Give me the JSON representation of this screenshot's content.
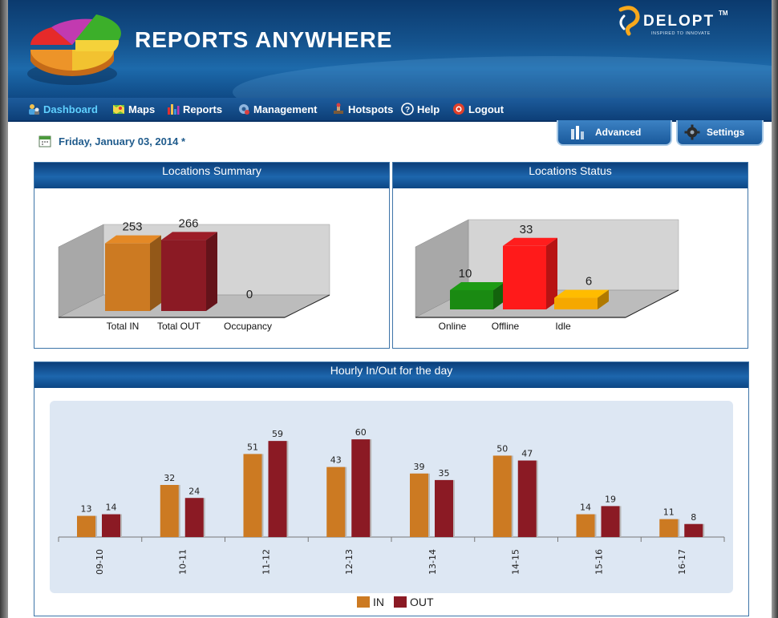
{
  "app": {
    "title": "REPORTS ANYWHERE",
    "brand": "DELOPT",
    "brand_tm": "TM",
    "brand_tagline": "INSPIRED TO INNOVATE"
  },
  "nav": {
    "items": [
      {
        "label": "Dashboard",
        "icon": "dashboard-icon",
        "active": true
      },
      {
        "label": "Maps",
        "icon": "map-icon"
      },
      {
        "label": "Reports",
        "icon": "reports-icon"
      },
      {
        "label": "Management",
        "icon": "management-icon"
      },
      {
        "label": "Hotspots",
        "icon": "hotspot-icon"
      },
      {
        "label": "Help",
        "icon": "help-icon"
      },
      {
        "label": "Logout",
        "icon": "logout-icon"
      }
    ]
  },
  "date": {
    "text": "Friday, January 03, 2014 *"
  },
  "tabs": {
    "advanced": "Advanced",
    "settings": "Settings"
  },
  "panels": {
    "summary": "Locations Summary",
    "status": "Locations Status",
    "hourly": "Hourly In/Out for the day"
  },
  "colors": {
    "in": "#cc7a22",
    "out": "#8b1a24",
    "online": "#1a8a12",
    "offline": "#ff1a1a",
    "idle": "#f5a800"
  },
  "chart_data": [
    {
      "type": "bar",
      "title": "Locations Summary",
      "categories": [
        "Total IN",
        "Total OUT",
        "Occupancy"
      ],
      "values": [
        253,
        266,
        0
      ]
    },
    {
      "type": "bar",
      "title": "Locations Status",
      "categories": [
        "Online",
        "Offline",
        "Idle"
      ],
      "values": [
        10,
        33,
        6
      ]
    },
    {
      "type": "bar",
      "title": "Hourly In/Out for the day",
      "categories": [
        "09-10",
        "10-11",
        "11-12",
        "12-13",
        "13-14",
        "14-15",
        "15-16",
        "16-17"
      ],
      "series": [
        {
          "name": "IN",
          "values": [
            13,
            32,
            51,
            43,
            39,
            50,
            14,
            11
          ]
        },
        {
          "name": "OUT",
          "values": [
            14,
            24,
            59,
            60,
            35,
            47,
            19,
            8
          ]
        }
      ],
      "ylim": [
        0,
        64
      ],
      "legend": "bottom"
    }
  ]
}
